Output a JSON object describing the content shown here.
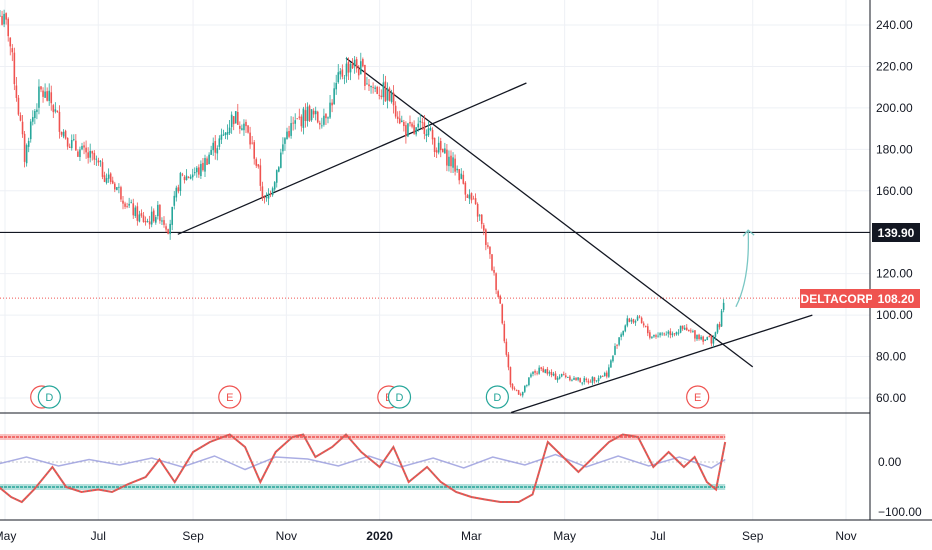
{
  "chart_data": {
    "type": "candlestick",
    "symbol": "DELTACORP",
    "last_price": "108.20",
    "level_label": "139.90",
    "x_ticks": [
      "May",
      "Jul",
      "Sep",
      "Nov",
      "2020",
      "Mar",
      "May",
      "Jul",
      "Sep",
      "Nov"
    ],
    "price_axis": {
      "ticks": [
        "240.00",
        "220.00",
        "200.00",
        "180.00",
        "160.00",
        "140.00",
        "120.00",
        "100.00",
        "80.00",
        "60.00"
      ],
      "ylim": [
        50,
        248
      ]
    },
    "osc_axis": {
      "ticks": [
        "0.00",
        "−100.00"
      ],
      "ylim": [
        -120,
        80
      ]
    },
    "horizontal_level": 139.9,
    "last_price_value": 108.2,
    "price_path": [
      [
        "2019-04-25",
        248
      ],
      [
        "2019-05-03",
        238
      ],
      [
        "2019-05-10",
        198
      ],
      [
        "2019-05-14",
        175
      ],
      [
        "2019-05-17",
        190
      ],
      [
        "2019-05-24",
        208
      ],
      [
        "2019-05-31",
        203
      ],
      [
        "2019-06-07",
        190
      ],
      [
        "2019-06-14",
        182
      ],
      [
        "2019-06-21",
        178
      ],
      [
        "2019-06-28",
        175
      ],
      [
        "2019-07-05",
        168
      ],
      [
        "2019-07-12",
        163
      ],
      [
        "2019-07-19",
        155
      ],
      [
        "2019-07-26",
        148
      ],
      [
        "2019-08-02",
        145
      ],
      [
        "2019-08-09",
        150
      ],
      [
        "2019-08-16",
        142
      ],
      [
        "2019-08-23",
        165
      ],
      [
        "2019-08-30",
        168
      ],
      [
        "2019-09-06",
        170
      ],
      [
        "2019-09-13",
        180
      ],
      [
        "2019-09-20",
        185
      ],
      [
        "2019-09-27",
        196
      ],
      [
        "2019-10-04",
        193
      ],
      [
        "2019-10-11",
        178
      ],
      [
        "2019-10-18",
        153
      ],
      [
        "2019-10-25",
        168
      ],
      [
        "2019-11-01",
        188
      ],
      [
        "2019-11-08",
        193
      ],
      [
        "2019-11-15",
        198
      ],
      [
        "2019-11-22",
        194
      ],
      [
        "2019-11-29",
        200
      ],
      [
        "2019-12-06",
        215
      ],
      [
        "2019-12-13",
        222
      ],
      [
        "2019-12-20",
        218
      ],
      [
        "2019-12-27",
        210
      ],
      [
        "2020-01-03",
        208
      ],
      [
        "2020-01-10",
        203
      ],
      [
        "2020-01-17",
        190
      ],
      [
        "2020-01-24",
        188
      ],
      [
        "2020-01-31",
        192
      ],
      [
        "2020-02-07",
        181
      ],
      [
        "2020-02-14",
        176
      ],
      [
        "2020-02-21",
        170
      ],
      [
        "2020-02-28",
        158
      ],
      [
        "2020-03-06",
        148
      ],
      [
        "2020-03-13",
        128
      ],
      [
        "2020-03-20",
        105
      ],
      [
        "2020-03-24",
        80
      ],
      [
        "2020-03-27",
        65
      ],
      [
        "2020-04-03",
        62
      ],
      [
        "2020-04-10",
        72
      ],
      [
        "2020-04-17",
        74
      ],
      [
        "2020-04-24",
        70
      ],
      [
        "2020-05-01",
        71
      ],
      [
        "2020-05-08",
        69
      ],
      [
        "2020-05-15",
        68
      ],
      [
        "2020-05-22",
        70
      ],
      [
        "2020-05-29",
        72
      ],
      [
        "2020-06-05",
        89
      ],
      [
        "2020-06-12",
        98
      ],
      [
        "2020-06-19",
        97
      ],
      [
        "2020-06-26",
        90
      ],
      [
        "2020-07-03",
        91
      ],
      [
        "2020-07-10",
        92
      ],
      [
        "2020-07-17",
        93
      ],
      [
        "2020-07-24",
        91
      ],
      [
        "2020-07-31",
        89
      ],
      [
        "2020-08-05",
        88
      ],
      [
        "2020-08-10",
        95
      ],
      [
        "2020-08-14",
        108.2
      ]
    ],
    "trendlines": [
      {
        "from": [
          "2019-08-22",
          139
        ],
        "to": [
          "2020-04-06",
          212
        ]
      },
      {
        "from": [
          "2019-12-10",
          224
        ],
        "to": [
          "2020-09-01",
          75
        ]
      },
      {
        "from": [
          "2020-03-27",
          53
        ],
        "to": [
          "2020-10-10",
          100
        ]
      }
    ],
    "forecast_arrow": {
      "from": [
        "2020-08-21",
        104
      ],
      "to": [
        "2020-08-29",
        141
      ]
    },
    "event_markers": [
      {
        "label": "E",
        "date": "2019-05-25",
        "color": "#ef5350"
      },
      {
        "label": "D",
        "date": "2019-05-30",
        "color": "#26a69a"
      },
      {
        "label": "E",
        "date": "2019-09-25",
        "color": "#ef5350"
      },
      {
        "label": "E",
        "date": "2020-01-07",
        "color": "#ef5350"
      },
      {
        "label": "D",
        "date": "2020-01-14",
        "color": "#26a69a"
      },
      {
        "label": "D",
        "date": "2020-03-18",
        "color": "#26a69a"
      },
      {
        "label": "E",
        "date": "2020-07-27",
        "color": "#ef5350"
      }
    ],
    "oscillator": {
      "upper_band": 50,
      "lower_band": -50,
      "path": [
        [
          "2019-04-25",
          -45
        ],
        [
          "2019-05-05",
          -70
        ],
        [
          "2019-05-12",
          -80
        ],
        [
          "2019-05-20",
          -55
        ],
        [
          "2019-06-01",
          -10
        ],
        [
          "2019-06-10",
          -50
        ],
        [
          "2019-06-20",
          -60
        ],
        [
          "2019-07-01",
          -55
        ],
        [
          "2019-07-10",
          -60
        ],
        [
          "2019-07-20",
          -45
        ],
        [
          "2019-08-01",
          -30
        ],
        [
          "2019-08-10",
          5
        ],
        [
          "2019-08-20",
          -40
        ],
        [
          "2019-09-01",
          20
        ],
        [
          "2019-09-12",
          40
        ],
        [
          "2019-09-25",
          55
        ],
        [
          "2019-10-05",
          30
        ],
        [
          "2019-10-15",
          -40
        ],
        [
          "2019-10-25",
          20
        ],
        [
          "2019-11-05",
          50
        ],
        [
          "2019-11-12",
          55
        ],
        [
          "2019-11-20",
          10
        ],
        [
          "2019-12-01",
          30
        ],
        [
          "2019-12-10",
          55
        ],
        [
          "2019-12-20",
          20
        ],
        [
          "2020-01-01",
          -10
        ],
        [
          "2020-01-10",
          30
        ],
        [
          "2020-01-20",
          -40
        ],
        [
          "2020-02-01",
          -10
        ],
        [
          "2020-02-10",
          -40
        ],
        [
          "2020-02-20",
          -60
        ],
        [
          "2020-03-01",
          -70
        ],
        [
          "2020-03-10",
          -75
        ],
        [
          "2020-03-20",
          -80
        ],
        [
          "2020-04-01",
          -80
        ],
        [
          "2020-04-10",
          -65
        ],
        [
          "2020-04-20",
          40
        ],
        [
          "2020-04-30",
          10
        ],
        [
          "2020-05-10",
          -20
        ],
        [
          "2020-05-20",
          10
        ],
        [
          "2020-05-30",
          40
        ],
        [
          "2020-06-08",
          55
        ],
        [
          "2020-06-18",
          50
        ],
        [
          "2020-06-28",
          -10
        ],
        [
          "2020-07-08",
          20
        ],
        [
          "2020-07-18",
          -10
        ],
        [
          "2020-07-25",
          10
        ],
        [
          "2020-08-02",
          -40
        ],
        [
          "2020-08-08",
          -55
        ],
        [
          "2020-08-14",
          40
        ]
      ],
      "signal_path": [
        [
          "2019-04-25",
          -5
        ],
        [
          "2019-05-15",
          10
        ],
        [
          "2019-06-05",
          -8
        ],
        [
          "2019-06-25",
          5
        ],
        [
          "2019-07-15",
          -6
        ],
        [
          "2019-08-05",
          8
        ],
        [
          "2019-08-25",
          -10
        ],
        [
          "2019-09-15",
          12
        ],
        [
          "2019-10-05",
          -15
        ],
        [
          "2019-10-25",
          10
        ],
        [
          "2019-11-15",
          6
        ],
        [
          "2019-12-05",
          -8
        ],
        [
          "2019-12-25",
          12
        ],
        [
          "2020-01-15",
          -10
        ],
        [
          "2020-02-05",
          8
        ],
        [
          "2020-02-25",
          -12
        ],
        [
          "2020-03-15",
          10
        ],
        [
          "2020-04-05",
          -6
        ],
        [
          "2020-04-25",
          15
        ],
        [
          "2020-05-15",
          -10
        ],
        [
          "2020-06-05",
          12
        ],
        [
          "2020-06-25",
          -8
        ],
        [
          "2020-07-15",
          10
        ],
        [
          "2020-08-05",
          -12
        ],
        [
          "2020-08-14",
          5
        ]
      ]
    },
    "colors": {
      "up": "#26a69a",
      "down": "#ef5350",
      "label_bg": "#ef5350",
      "upper_band": "#ef5350",
      "lower_band": "#26a69a",
      "signal": "#9598dc",
      "arrow": "#7ac7c4",
      "trendline": "#131722"
    }
  }
}
